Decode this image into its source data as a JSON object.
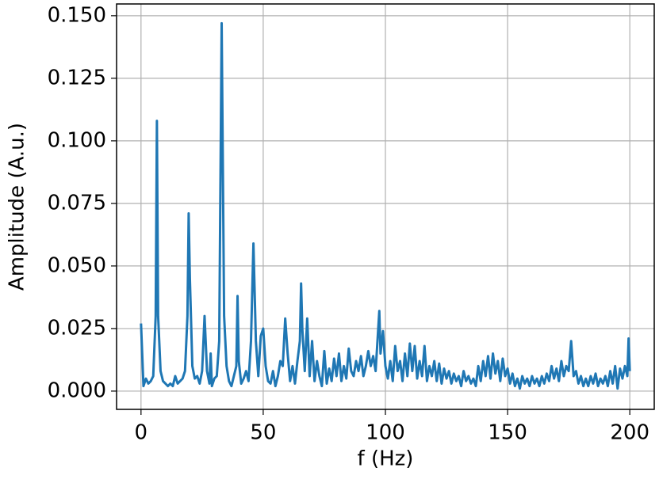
{
  "chart_data": {
    "type": "line",
    "x_label": "f (Hz)",
    "y_label": "Amplitude (A.u.)",
    "color": "#1f77b4",
    "grid": true,
    "xlim": [
      -10,
      210
    ],
    "ylim": [
      -0.0073,
      0.1547
    ],
    "xticks": [
      0,
      50,
      100,
      150,
      200
    ],
    "yticks": [
      {
        "value": 0,
        "label": "0.000"
      },
      {
        "value": 0.025,
        "label": "0.025"
      },
      {
        "value": 0.05,
        "label": "0.050"
      },
      {
        "value": 0.075,
        "label": "0.075"
      },
      {
        "value": 0.1,
        "label": "0.100"
      },
      {
        "value": 0.125,
        "label": "0.125"
      },
      {
        "value": 0.15,
        "label": "0.150"
      }
    ],
    "x": [
      0,
      1,
      2,
      3,
      4,
      5,
      6,
      6.5,
      7,
      8,
      9,
      10,
      11,
      12,
      13,
      14,
      15,
      16,
      17,
      18,
      19,
      19.5,
      20,
      21,
      22,
      23,
      24,
      25,
      26,
      27,
      28,
      28.5,
      29,
      30,
      31,
      32,
      33,
      34,
      35,
      36,
      37,
      38,
      39,
      39.5,
      40,
      41,
      42,
      43,
      44,
      45,
      46,
      47,
      48,
      49,
      50,
      51,
      52,
      53,
      54,
      55,
      56,
      57,
      58,
      59,
      60,
      61,
      62,
      63,
      64,
      65,
      65.5,
      66,
      67,
      68,
      69,
      70,
      71,
      72,
      73,
      74,
      75,
      76,
      77,
      78,
      79,
      80,
      81,
      82,
      83,
      84,
      85,
      86,
      87,
      88,
      89,
      90,
      91,
      92,
      93,
      94,
      95,
      96,
      97,
      97.5,
      98,
      99,
      100,
      101,
      102,
      103,
      104,
      105,
      106,
      107,
      108,
      109,
      110,
      111,
      112,
      113,
      114,
      115,
      116,
      117,
      118,
      119,
      120,
      121,
      122,
      123,
      124,
      125,
      126,
      127,
      128,
      129,
      130,
      131,
      132,
      133,
      134,
      135,
      136,
      137,
      138,
      139,
      140,
      141,
      142,
      143,
      144,
      145,
      146,
      147,
      148,
      149,
      150,
      151,
      152,
      153,
      154,
      155,
      156,
      157,
      158,
      159,
      160,
      161,
      162,
      163,
      164,
      165,
      166,
      167,
      168,
      169,
      170,
      171,
      172,
      173,
      174,
      175,
      176,
      177,
      178,
      179,
      180,
      181,
      182,
      183,
      184,
      185,
      186,
      187,
      188,
      189,
      190,
      191,
      192,
      193,
      194,
      195,
      196,
      197,
      198,
      199,
      199.5,
      200
    ],
    "values": [
      0.027,
      0.002,
      0.005,
      0.003,
      0.004,
      0.006,
      0.03,
      0.108,
      0.03,
      0.008,
      0.004,
      0.003,
      0.002,
      0.003,
      0.002,
      0.006,
      0.003,
      0.004,
      0.005,
      0.008,
      0.03,
      0.071,
      0.045,
      0.01,
      0.005,
      0.006,
      0.003,
      0.008,
      0.03,
      0.008,
      0.003,
      0.015,
      0.002,
      0.005,
      0.006,
      0.02,
      0.147,
      0.03,
      0.01,
      0.004,
      0.002,
      0.006,
      0.01,
      0.038,
      0.012,
      0.003,
      0.005,
      0.008,
      0.004,
      0.02,
      0.059,
      0.02,
      0.006,
      0.022,
      0.025,
      0.01,
      0.004,
      0.003,
      0.008,
      0.002,
      0.006,
      0.012,
      0.01,
      0.029,
      0.015,
      0.004,
      0.01,
      0.003,
      0.012,
      0.02,
      0.043,
      0.025,
      0.008,
      0.029,
      0.006,
      0.02,
      0.004,
      0.012,
      0.006,
      0.002,
      0.016,
      0.003,
      0.009,
      0.004,
      0.013,
      0.006,
      0.015,
      0.004,
      0.01,
      0.005,
      0.017,
      0.008,
      0.006,
      0.012,
      0.008,
      0.014,
      0.006,
      0.01,
      0.016,
      0.01,
      0.014,
      0.008,
      0.024,
      0.032,
      0.015,
      0.024,
      0.01,
      0.005,
      0.012,
      0.004,
      0.018,
      0.008,
      0.012,
      0.004,
      0.015,
      0.006,
      0.019,
      0.008,
      0.018,
      0.005,
      0.012,
      0.006,
      0.018,
      0.004,
      0.01,
      0.006,
      0.012,
      0.004,
      0.011,
      0.003,
      0.009,
      0.005,
      0.008,
      0.003,
      0.007,
      0.004,
      0.006,
      0.002,
      0.008,
      0.004,
      0.006,
      0.003,
      0.005,
      0.002,
      0.01,
      0.004,
      0.012,
      0.006,
      0.014,
      0.005,
      0.015,
      0.007,
      0.012,
      0.004,
      0.013,
      0.006,
      0.009,
      0.003,
      0.007,
      0.002,
      0.005,
      0.001,
      0.006,
      0.003,
      0.005,
      0.002,
      0.006,
      0.003,
      0.005,
      0.002,
      0.006,
      0.003,
      0.007,
      0.004,
      0.01,
      0.005,
      0.009,
      0.004,
      0.012,
      0.006,
      0.01,
      0.008,
      0.02,
      0.006,
      0.008,
      0.003,
      0.006,
      0.002,
      0.005,
      0.002,
      0.006,
      0.003,
      0.007,
      0.002,
      0.005,
      0.003,
      0.006,
      0.002,
      0.008,
      0.003,
      0.01,
      0.001,
      0.009,
      0.005,
      0.01,
      0.006,
      0.021,
      0.008
    ]
  }
}
